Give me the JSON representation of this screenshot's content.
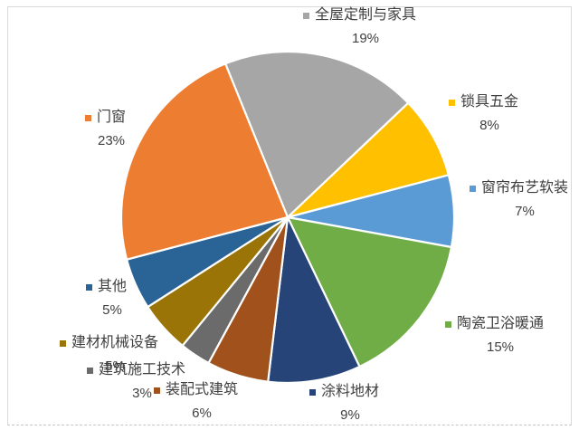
{
  "chart_data": {
    "type": "pie",
    "title": "",
    "unit": "%",
    "start_angle_deg": -22,
    "direction": "clockwise",
    "legend_position": "data-labels-outside",
    "categories": [
      "全屋定制与家具",
      "锁具五金",
      "窗帘布艺软装",
      "陶瓷卫浴暖通",
      "涂料地材",
      "装配式建筑",
      "建筑施工技术",
      "建材机械设备",
      "其他",
      "门窗"
    ],
    "values": [
      19,
      8,
      7,
      15,
      9,
      6,
      3,
      5,
      5,
      23
    ],
    "items": [
      {
        "label": "全屋定制与家具",
        "value": 19,
        "pct_label": "19%",
        "color": "#a6a6a6"
      },
      {
        "label": "锁具五金",
        "value": 8,
        "pct_label": "8%",
        "color": "#ffc000"
      },
      {
        "label": "窗帘布艺软装",
        "value": 7,
        "pct_label": "7%",
        "color": "#5b9bd5"
      },
      {
        "label": "陶瓷卫浴暖通",
        "value": 15,
        "pct_label": "15%",
        "color": "#70ad47"
      },
      {
        "label": "涂料地材",
        "value": 9,
        "pct_label": "9%",
        "color": "#264478"
      },
      {
        "label": "装配式建筑",
        "value": 6,
        "pct_label": "6%",
        "color": "#a0511c"
      },
      {
        "label": "建筑施工技术",
        "value": 3,
        "pct_label": "3%",
        "color": "#6b6b6b"
      },
      {
        "label": "建材机械设备",
        "value": 5,
        "pct_label": "5%",
        "color": "#9a7407"
      },
      {
        "label": "其他",
        "value": 5,
        "pct_label": "5%",
        "color": "#2a6496"
      },
      {
        "label": "门窗",
        "value": 23,
        "pct_label": "23%",
        "color": "#ed7d31"
      }
    ]
  }
}
